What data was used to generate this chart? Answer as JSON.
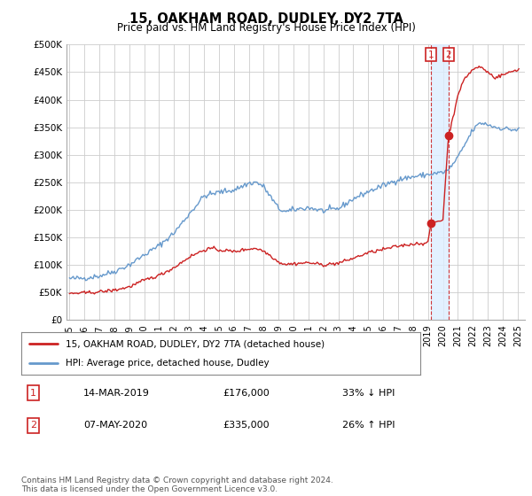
{
  "title": "15, OAKHAM ROAD, DUDLEY, DY2 7TA",
  "subtitle": "Price paid vs. HM Land Registry's House Price Index (HPI)",
  "ylim": [
    0,
    500000
  ],
  "yticks": [
    0,
    50000,
    100000,
    150000,
    200000,
    250000,
    300000,
    350000,
    400000,
    450000,
    500000
  ],
  "ytick_labels": [
    "£0",
    "£50K",
    "£100K",
    "£150K",
    "£200K",
    "£250K",
    "£300K",
    "£350K",
    "£400K",
    "£450K",
    "£500K"
  ],
  "xlim_start": 1994.8,
  "xlim_end": 2025.5,
  "xtick_years": [
    1995,
    1996,
    1997,
    1998,
    1999,
    2000,
    2001,
    2002,
    2003,
    2004,
    2005,
    2006,
    2007,
    2008,
    2009,
    2010,
    2011,
    2012,
    2013,
    2014,
    2015,
    2016,
    2017,
    2018,
    2019,
    2020,
    2021,
    2022,
    2023,
    2024,
    2025
  ],
  "hpi_color": "#6699cc",
  "price_color": "#cc2222",
  "sale1_x": 2019.2,
  "sale1_y": 176000,
  "sale2_x": 2020.37,
  "sale2_y": 335000,
  "sale1_label": "14-MAR-2019",
  "sale1_price": "£176,000",
  "sale1_note": "33% ↓ HPI",
  "sale2_label": "07-MAY-2020",
  "sale2_price": "£335,000",
  "sale2_note": "26% ↑ HPI",
  "legend_line1": "15, OAKHAM ROAD, DUDLEY, DY2 7TA (detached house)",
  "legend_line2": "HPI: Average price, detached house, Dudley",
  "footer": "Contains HM Land Registry data © Crown copyright and database right 2024.\nThis data is licensed under the Open Government Licence v3.0.",
  "background_color": "#ffffff",
  "grid_color": "#cccccc",
  "span_color": "#ddeeff"
}
